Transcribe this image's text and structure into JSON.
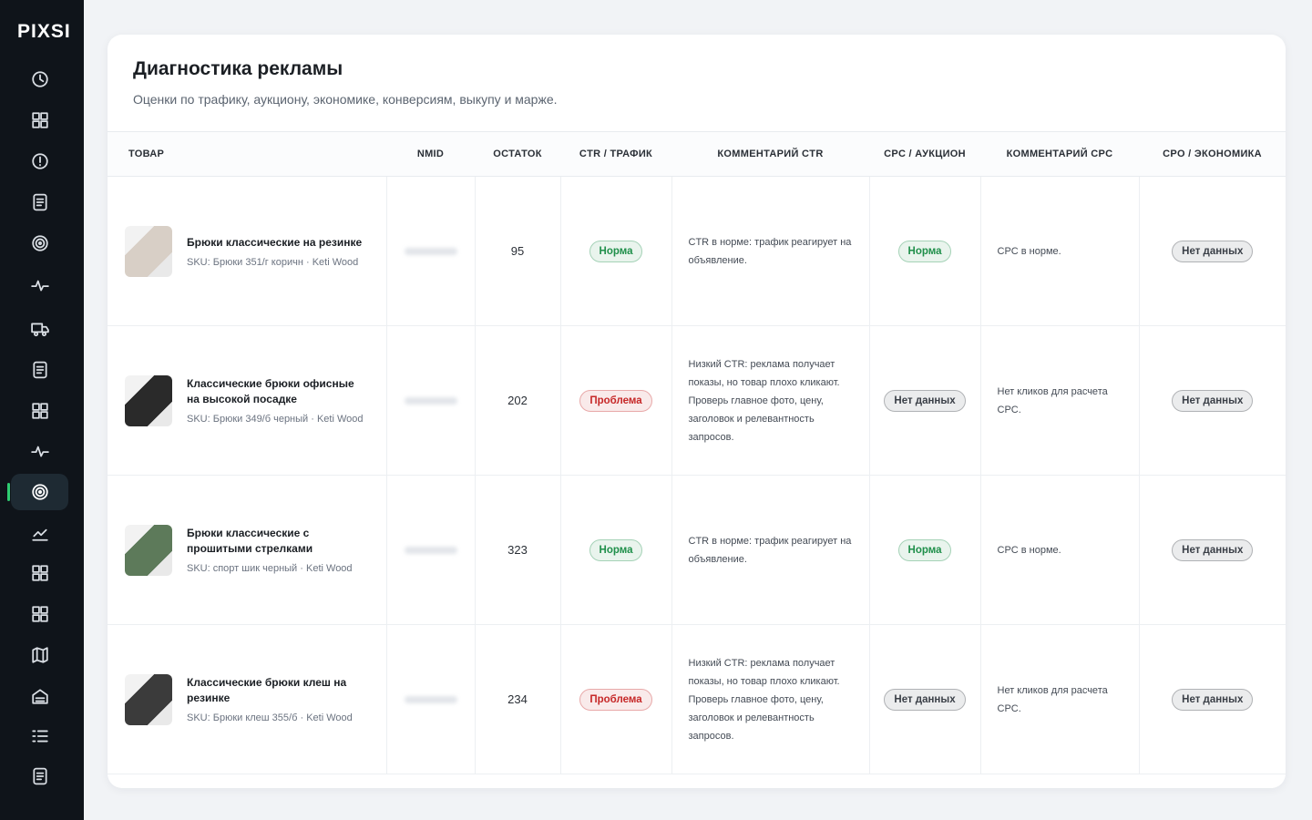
{
  "sidebar": {
    "logo": "PIXSI"
  },
  "header": {
    "title": "Диагностика рекламы",
    "subtitle": "Оценки по трафику, аукциону, экономике, конверсиям, выкупу и марже."
  },
  "table": {
    "columns": [
      "ТОВАР",
      "NMID",
      "ОСТАТОК",
      "CTR / ТРАФИК",
      "КОММЕНТАРИЙ CTR",
      "CPC / АУКЦИОН",
      "КОММЕНТАРИЙ CPC",
      "CPO / ЭКОНОМИКА"
    ],
    "rows": [
      {
        "product": "Брюки классические на резинке",
        "sku": "SKU: Брюки 351/г коричн",
        "brand": "Keti Wood",
        "stock": 95,
        "ctr": {
          "label": "Норма",
          "color": "#1f8f4a"
        },
        "ctr_comment": "CTR в норме: трафик реагирует на объявление.",
        "cpc": {
          "label": "Норма",
          "color": "#1f8f4a"
        },
        "cpc_comment": "CPC в норме.",
        "cpo": {
          "label": "Нет данных",
          "color": "#3a3f47"
        }
      },
      {
        "product": "Классические брюки офисные на высокой посадке",
        "sku": "SKU: Брюки 349/б черный",
        "brand": "Keti Wood",
        "stock": 202,
        "ctr": {
          "label": "Проблема",
          "color": "#c62828"
        },
        "ctr_comment": "Низкий CTR: реклама получает показы, но товар плохо кликают. Проверь главное фото, цену, заголовок и релевантность запросов.",
        "cpc": {
          "label": "Нет данных",
          "color": "#3a3f47"
        },
        "cpc_comment": "Нет кликов для расчета CPC.",
        "cpo": {
          "label": "Нет данных",
          "color": "#3a3f47"
        }
      },
      {
        "product": "Брюки классические с прошитыми стрелками",
        "sku": "SKU: спорт шик черный",
        "brand": "Keti Wood",
        "stock": 323,
        "ctr": {
          "label": "Норма",
          "color": "#1f8f4a"
        },
        "ctr_comment": "CTR в норме: трафик реагирует на объявление.",
        "cpc": {
          "label": "Норма",
          "color": "#1f8f4a"
        },
        "cpc_comment": "CPC в норме.",
        "cpo": {
          "label": "Нет данных",
          "color": "#3a3f47"
        }
      },
      {
        "product": "Классические брюки клеш на резинке",
        "sku": "SKU: Брюки клеш 355/б",
        "brand": "Keti Wood",
        "stock": 234,
        "ctr": {
          "label": "Проблема",
          "color": "#c62828"
        },
        "ctr_comment": "Низкий CTR: реклама получает показы, но товар плохо кликают. Проверь главное фото, цену, заголовок и релевантность запросов.",
        "cpc": {
          "label": "Нет данных",
          "color": "#3a3f47"
        },
        "cpc_comment": "Нет кликов для расчета CPC.",
        "cpo": {
          "label": "Нет данных",
          "color": "#3a3f47"
        }
      }
    ]
  }
}
